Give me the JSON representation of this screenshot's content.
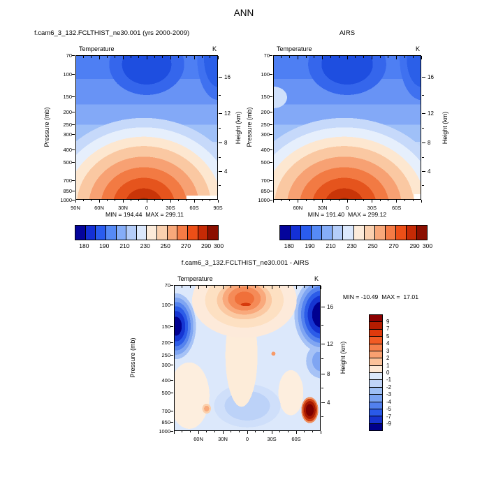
{
  "title": "ANN",
  "axes": {
    "pressure_title": "Pressure (mb)",
    "height_title": "Height (km)",
    "pressure_ticks": [
      70,
      100,
      150,
      200,
      250,
      300,
      400,
      500,
      700,
      850,
      1000
    ],
    "height_ticks": [
      16,
      12,
      8,
      4
    ]
  },
  "panels": {
    "model": {
      "title": "f.cam6_3_132.FCLTHIST_ne30.001 (yrs 2000-2009)",
      "field": "Temperature",
      "units": "K",
      "min_max": "MIN = 194.44  MAX = 299.11",
      "lat_labels": [
        "90N",
        "60N",
        "30N",
        "0",
        "30S",
        "60S",
        "90S"
      ]
    },
    "obs": {
      "title": "AIRS",
      "field": "Temperature",
      "units": "K",
      "min_max": "MIN = 191.40  MAX = 299.12",
      "lat_labels": [
        "60N",
        "30N",
        "0",
        "30S",
        "60S"
      ]
    },
    "diff": {
      "title": "f.cam6_3_132.FCLTHIST_ne30.001 - AIRS",
      "field": "Temperature",
      "units": "K",
      "min_max": "MIN = -10.49  MAX =  17.01",
      "lat_labels": [
        "60N",
        "30N",
        "0",
        "30S",
        "60S"
      ]
    }
  },
  "colorbar_temperature": {
    "labels": [
      "180",
      "190",
      "210",
      "230",
      "250",
      "270",
      "290",
      "300"
    ],
    "colors": [
      "#04049b",
      "#1430d5",
      "#2a5cef",
      "#568af6",
      "#85adf8",
      "#b4cdf9",
      "#dbe8fc",
      "#fcebda",
      "#fad0af",
      "#f8a87a",
      "#f57b45",
      "#ed4f17",
      "#c62a05",
      "#8b0f00"
    ]
  },
  "colorbar_difference": {
    "labels": [
      "9",
      "7",
      "5",
      "4",
      "3",
      "2",
      "1",
      "0",
      "-1",
      "-2",
      "-3",
      "-4",
      "-5",
      "-7",
      "-9"
    ],
    "colors": [
      "#8b0000",
      "#b51c00",
      "#e03a0c",
      "#f25b24",
      "#f57f4b",
      "#f8a070",
      "#fbc29a",
      "#fde8d4",
      "#dce9fb",
      "#c0d4f8",
      "#9ebff5",
      "#7aa3f2",
      "#5280ee",
      "#2a5ae8",
      "#1733cf",
      "#00008b"
    ]
  },
  "chart_data": [
    {
      "type": "contour",
      "panel": "top-left",
      "title": "f.cam6_3_132.FCLTHIST_ne30.001 (yrs 2000-2009)",
      "season": "ANN",
      "variable": "Temperature",
      "units": "K",
      "x_axis": {
        "label": "Latitude",
        "ticks": [
          "90N",
          "60N",
          "30N",
          "0",
          "30S",
          "60S",
          "90S"
        ],
        "range_deg": [
          90,
          -90
        ]
      },
      "y_axis_left": {
        "label": "Pressure (mb)",
        "scale": "log",
        "ticks": [
          70,
          100,
          150,
          200,
          250,
          300,
          400,
          500,
          700,
          850,
          1000
        ],
        "range": [
          70,
          1000
        ]
      },
      "y_axis_right": {
        "label": "Height (km)",
        "ticks": [
          16,
          12,
          8,
          4
        ]
      },
      "contour_levels": [
        180,
        190,
        200,
        210,
        220,
        230,
        240,
        250,
        260,
        270,
        280,
        290,
        300
      ],
      "min": 194.44,
      "max": 299.11,
      "palette": "blue-to-red, 14 bins",
      "pattern": "cold minimum (~195 K) centered over tropical tropopause near 100 mb; warm maximum (~299 K) at tropical surface near 1000 mb; white terrain notch at lower-right (Antarctica)"
    },
    {
      "type": "contour",
      "panel": "top-right",
      "title": "AIRS",
      "season": "ANN",
      "variable": "Temperature",
      "units": "K",
      "x_axis": {
        "label": "Latitude",
        "ticks": [
          "60N",
          "30N",
          "0",
          "30S",
          "60S"
        ],
        "range_deg": [
          90,
          -90
        ]
      },
      "y_axis_left": {
        "label": "Pressure (mb)",
        "scale": "log",
        "ticks": [
          70,
          100,
          150,
          200,
          250,
          300,
          400,
          500,
          700,
          850,
          1000
        ],
        "range": [
          70,
          1000
        ]
      },
      "y_axis_right": {
        "label": "Height (km)",
        "ticks": [
          16,
          12,
          8,
          4
        ]
      },
      "contour_levels": [
        180,
        190,
        200,
        210,
        220,
        230,
        240,
        250,
        260,
        270,
        280,
        290,
        300
      ],
      "min": 191.4,
      "max": 299.12,
      "palette": "blue-to-red, 14 bins",
      "pattern": "same structure as model: cold tropical tropopause minimum near 100 mb, warm tropical surface maximum; small white terrain notch at lower-right"
    },
    {
      "type": "contour",
      "panel": "bottom",
      "title": "f.cam6_3_132.FCLTHIST_ne30.001 - AIRS",
      "season": "ANN",
      "variable": "Temperature difference",
      "units": "K",
      "x_axis": {
        "label": "Latitude",
        "ticks": [
          "60N",
          "30N",
          "0",
          "30S",
          "60S"
        ],
        "range_deg": [
          90,
          -90
        ]
      },
      "y_axis_left": {
        "label": "Pressure (mb)",
        "scale": "log",
        "ticks": [
          70,
          100,
          150,
          200,
          250,
          300,
          400,
          500,
          700,
          850,
          1000
        ],
        "range": [
          70,
          1000
        ]
      },
      "y_axis_right": {
        "label": "Height (km)",
        "ticks": [
          16,
          12,
          8,
          4
        ]
      },
      "contour_levels": [
        -9,
        -7,
        -5,
        -4,
        -3,
        -2,
        -1,
        0,
        1,
        2,
        3,
        4,
        5,
        7,
        9
      ],
      "min": -10.49,
      "max": 17.01,
      "palette": "blue-to-red, 16 bins, vertical labelbar",
      "pattern": "warm bias (+3 to +5 K) above tropics near 100 mb; deep cold biases (below -9 K) in high-latitude upper troposphere of both hemispheres (~60N 200 mb and ~60-80S 100-250 mb); intense localized warm bias (up to +17 K) near 70S at 600-850 mb; elsewhere weak (|dT| < 2 K)"
    }
  ]
}
